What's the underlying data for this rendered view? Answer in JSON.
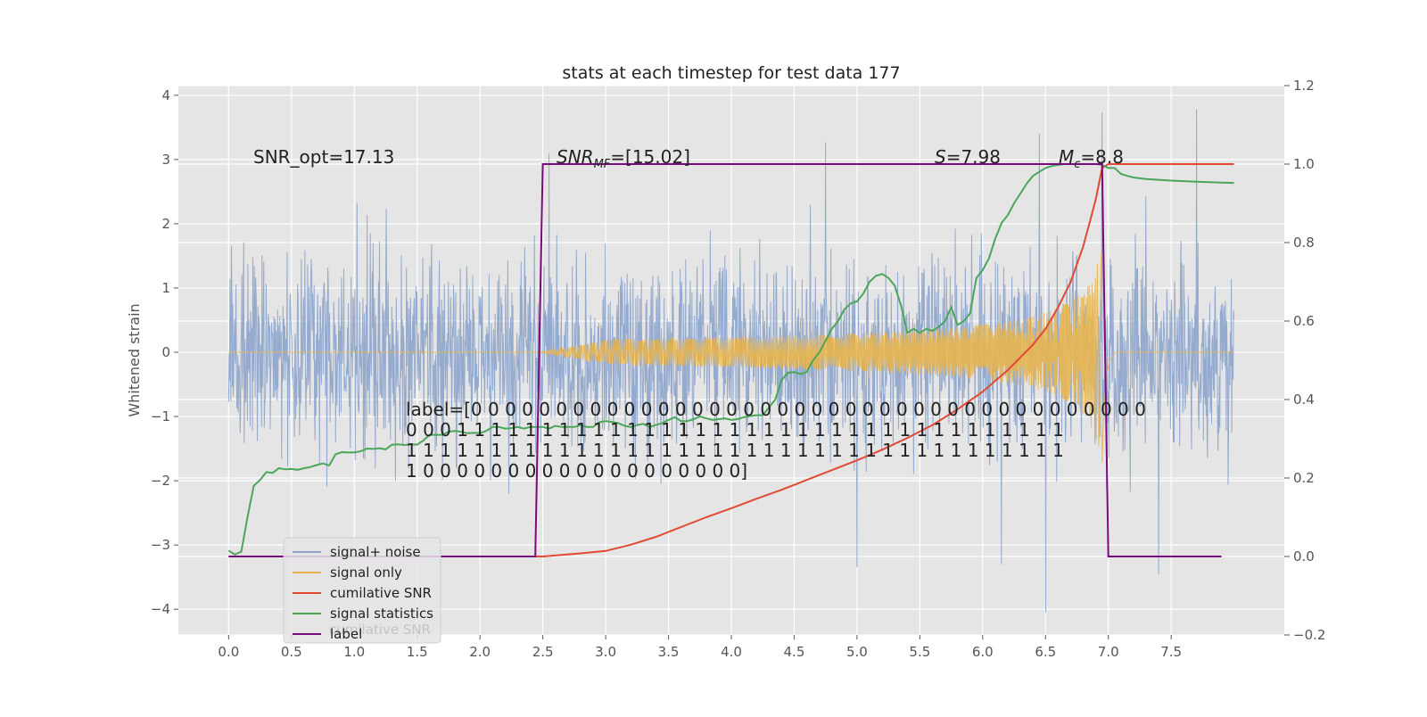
{
  "chart_data": {
    "type": "line",
    "title": "stats at each timestep for test data 177",
    "xlabel": "",
    "ylabel": "Whitened strain",
    "y2label": "",
    "xlim": [
      -0.4,
      8.4
    ],
    "ylim": [
      -4.4,
      4.15
    ],
    "y2lim": [
      -0.2,
      1.2
    ],
    "xticks": [
      "0.0",
      "0.5",
      "1.0",
      "1.5",
      "2.0",
      "2.5",
      "3.0",
      "3.5",
      "4.0",
      "4.5",
      "5.0",
      "5.5",
      "6.0",
      "6.5",
      "7.0",
      "7.5"
    ],
    "yticks": [
      "4",
      "3",
      "2",
      "1",
      "0",
      "−1",
      "−2",
      "−3",
      "−4"
    ],
    "y2ticks": [
      "1.2",
      "1.0",
      "0.8",
      "0.6",
      "0.4",
      "0.2",
      "0.0",
      "−0.2"
    ],
    "grid": true,
    "legend_position": "lower-left",
    "colors": {
      "signal_noise": "#8fa6cc",
      "signal_only": "#e8b54f",
      "cumulative_snr": "#e24a33",
      "signal_statistics": "#4ca65a",
      "label": "#7b0a7b",
      "background": "#e5e5e5"
    },
    "series": [
      {
        "name": "signal+ noise",
        "axis": "left",
        "kind": "noise",
        "t_range": [
          0.0,
          8.0
        ],
        "typical_range": [
          -2.2,
          2.2
        ],
        "peak_excursions": [
          {
            "x": 2.55,
            "y": 3.1
          },
          {
            "x": 4.75,
            "y": 3.27
          },
          {
            "x": 6.45,
            "y": 3.4
          },
          {
            "x": 6.95,
            "y": 3.73
          },
          {
            "x": 7.7,
            "y": 3.78
          },
          {
            "x": 5.0,
            "y": -3.35
          },
          {
            "x": 6.5,
            "y": -4.05
          },
          {
            "x": 7.4,
            "y": -3.45
          },
          {
            "x": 6.15,
            "y": -3.3
          }
        ]
      },
      {
        "name": "signal only",
        "axis": "left",
        "kind": "chirp",
        "start": 2.45,
        "merger": 6.95,
        "end": 7.05,
        "peak_amplitude": 1.75
      },
      {
        "name": "cumilative SNR",
        "axis": "right",
        "x": [
          0.0,
          2.45,
          2.5,
          2.8,
          3.0,
          3.2,
          3.4,
          3.6,
          3.8,
          4.0,
          4.2,
          4.4,
          4.6,
          4.8,
          5.0,
          5.2,
          5.4,
          5.6,
          5.8,
          6.0,
          6.2,
          6.4,
          6.5,
          6.6,
          6.7,
          6.8,
          6.85,
          6.9,
          6.95,
          7.0,
          7.5,
          8.0
        ],
        "y": [
          0.0,
          0.0,
          0.0,
          0.008,
          0.014,
          0.03,
          0.05,
          0.075,
          0.1,
          0.123,
          0.147,
          0.17,
          0.195,
          0.22,
          0.245,
          0.272,
          0.302,
          0.335,
          0.375,
          0.42,
          0.475,
          0.54,
          0.58,
          0.635,
          0.7,
          0.79,
          0.85,
          0.91,
          0.99,
          1.0,
          1.0,
          1.0
        ]
      },
      {
        "name": "signal statistics",
        "axis": "right",
        "x": [
          0.0,
          0.05,
          0.1,
          0.15,
          0.2,
          0.25,
          0.3,
          0.35,
          0.4,
          0.45,
          0.5,
          0.55,
          0.6,
          0.65,
          0.7,
          0.75,
          0.8,
          0.85,
          0.9,
          0.95,
          1.0,
          1.05,
          1.1,
          1.15,
          1.2,
          1.25,
          1.3,
          1.35,
          1.4,
          1.45,
          1.5,
          1.55,
          1.6,
          1.65,
          1.7,
          1.75,
          1.8,
          1.85,
          1.9,
          1.95,
          2.0,
          2.05,
          2.1,
          2.15,
          2.2,
          2.25,
          2.3,
          2.35,
          2.4,
          2.45,
          2.5,
          2.55,
          2.6,
          2.65,
          2.7,
          2.75,
          2.8,
          2.85,
          2.9,
          2.95,
          3.0,
          3.05,
          3.1,
          3.15,
          3.2,
          3.25,
          3.3,
          3.35,
          3.4,
          3.45,
          3.5,
          3.55,
          3.6,
          3.65,
          3.7,
          3.75,
          3.8,
          3.85,
          3.9,
          3.95,
          4.0,
          4.05,
          4.1,
          4.15,
          4.2,
          4.25,
          4.3,
          4.35,
          4.4,
          4.45,
          4.5,
          4.55,
          4.6,
          4.65,
          4.7,
          4.75,
          4.8,
          4.85,
          4.9,
          4.95,
          5.0,
          5.05,
          5.1,
          5.15,
          5.2,
          5.25,
          5.3,
          5.35,
          5.4,
          5.45,
          5.5,
          5.55,
          5.6,
          5.65,
          5.7,
          5.75,
          5.8,
          5.85,
          5.9,
          5.95,
          6.0,
          6.05,
          6.1,
          6.15,
          6.2,
          6.25,
          6.3,
          6.35,
          6.4,
          6.45,
          6.5,
          6.55,
          6.6,
          6.65,
          6.7,
          6.75,
          6.8,
          6.85,
          6.9,
          6.95,
          7.0,
          7.05,
          7.1,
          7.15,
          7.2,
          7.3,
          7.5,
          7.7,
          7.9,
          8.0
        ],
        "y": [
          0.015,
          0.005,
          0.012,
          0.1,
          0.18,
          0.195,
          0.215,
          0.213,
          0.225,
          0.222,
          0.223,
          0.221,
          0.225,
          0.228,
          0.233,
          0.237,
          0.232,
          0.26,
          0.266,
          0.265,
          0.265,
          0.268,
          0.275,
          0.274,
          0.276,
          0.273,
          0.285,
          0.286,
          0.284,
          0.286,
          0.285,
          0.296,
          0.31,
          0.31,
          0.31,
          0.318,
          0.32,
          0.318,
          0.314,
          0.315,
          0.314,
          0.32,
          0.33,
          0.33,
          0.326,
          0.327,
          0.33,
          0.326,
          0.33,
          0.33,
          0.33,
          0.326,
          0.333,
          0.33,
          0.33,
          0.33,
          0.335,
          0.33,
          0.33,
          0.342,
          0.345,
          0.343,
          0.34,
          0.333,
          0.33,
          0.335,
          0.338,
          0.33,
          0.335,
          0.34,
          0.348,
          0.355,
          0.345,
          0.345,
          0.35,
          0.357,
          0.352,
          0.348,
          0.35,
          0.352,
          0.348,
          0.35,
          0.355,
          0.358,
          0.36,
          0.36,
          0.38,
          0.4,
          0.45,
          0.468,
          0.47,
          0.465,
          0.47,
          0.5,
          0.52,
          0.55,
          0.58,
          0.6,
          0.63,
          0.645,
          0.65,
          0.67,
          0.7,
          0.715,
          0.72,
          0.71,
          0.69,
          0.64,
          0.57,
          0.58,
          0.57,
          0.58,
          0.575,
          0.585,
          0.6,
          0.635,
          0.59,
          0.6,
          0.62,
          0.71,
          0.73,
          0.76,
          0.81,
          0.85,
          0.87,
          0.9,
          0.925,
          0.95,
          0.97,
          0.98,
          0.99,
          0.995,
          0.998,
          1.0,
          1.0,
          1.0,
          1.0,
          1.0,
          1.0,
          0.998,
          0.99,
          0.99,
          0.975,
          0.97,
          0.966,
          0.962,
          0.958,
          0.955,
          0.953,
          0.952
        ]
      },
      {
        "name": "label",
        "axis": "right",
        "x": [
          0.0,
          2.44,
          2.5,
          6.95,
          7.0,
          7.9
        ],
        "y": [
          0.0,
          0.0,
          1.0,
          1.0,
          0.0,
          0.0
        ]
      }
    ],
    "annotations": [
      {
        "text": "SNR_opt=17.13"
      },
      {
        "text": "SNR_MF=[15.02]"
      },
      {
        "text": "S=7.98"
      },
      {
        "text": "M_c=8.8"
      }
    ],
    "label_text_lines": [
      "label=[0 0 0 0 0 0 0 0 0 0 0 0 0 0 0 0 0 0 0 0 0 0 0 0 0 0 0 0 0 0 0 0 0 0 0 0 0 0 0 0",
      " 0 0 0 1 1 1 1 1 1 1 1 1 1 1 1 1 1 1 1 1 1 1 1 1 1 1 1 1 1 1 1 1 1 1 1 1 1 1 1",
      " 1 1 1 1 1 1 1 1 1 1 1 1 1 1 1 1 1 1 1 1 1 1 1 1 1 1 1 1 1 1 1 1 1 1 1 1 1 1 1",
      " 1 0 0 0 0 0 0 0 0 0 0 0 0 0 0 0 0 0 0 0]"
    ],
    "legend_entries": [
      "signal+ noise",
      "signal only",
      "cumilative SNR",
      "signal statistics",
      "label"
    ],
    "legend_ghost_text": "cumilative SNR"
  }
}
